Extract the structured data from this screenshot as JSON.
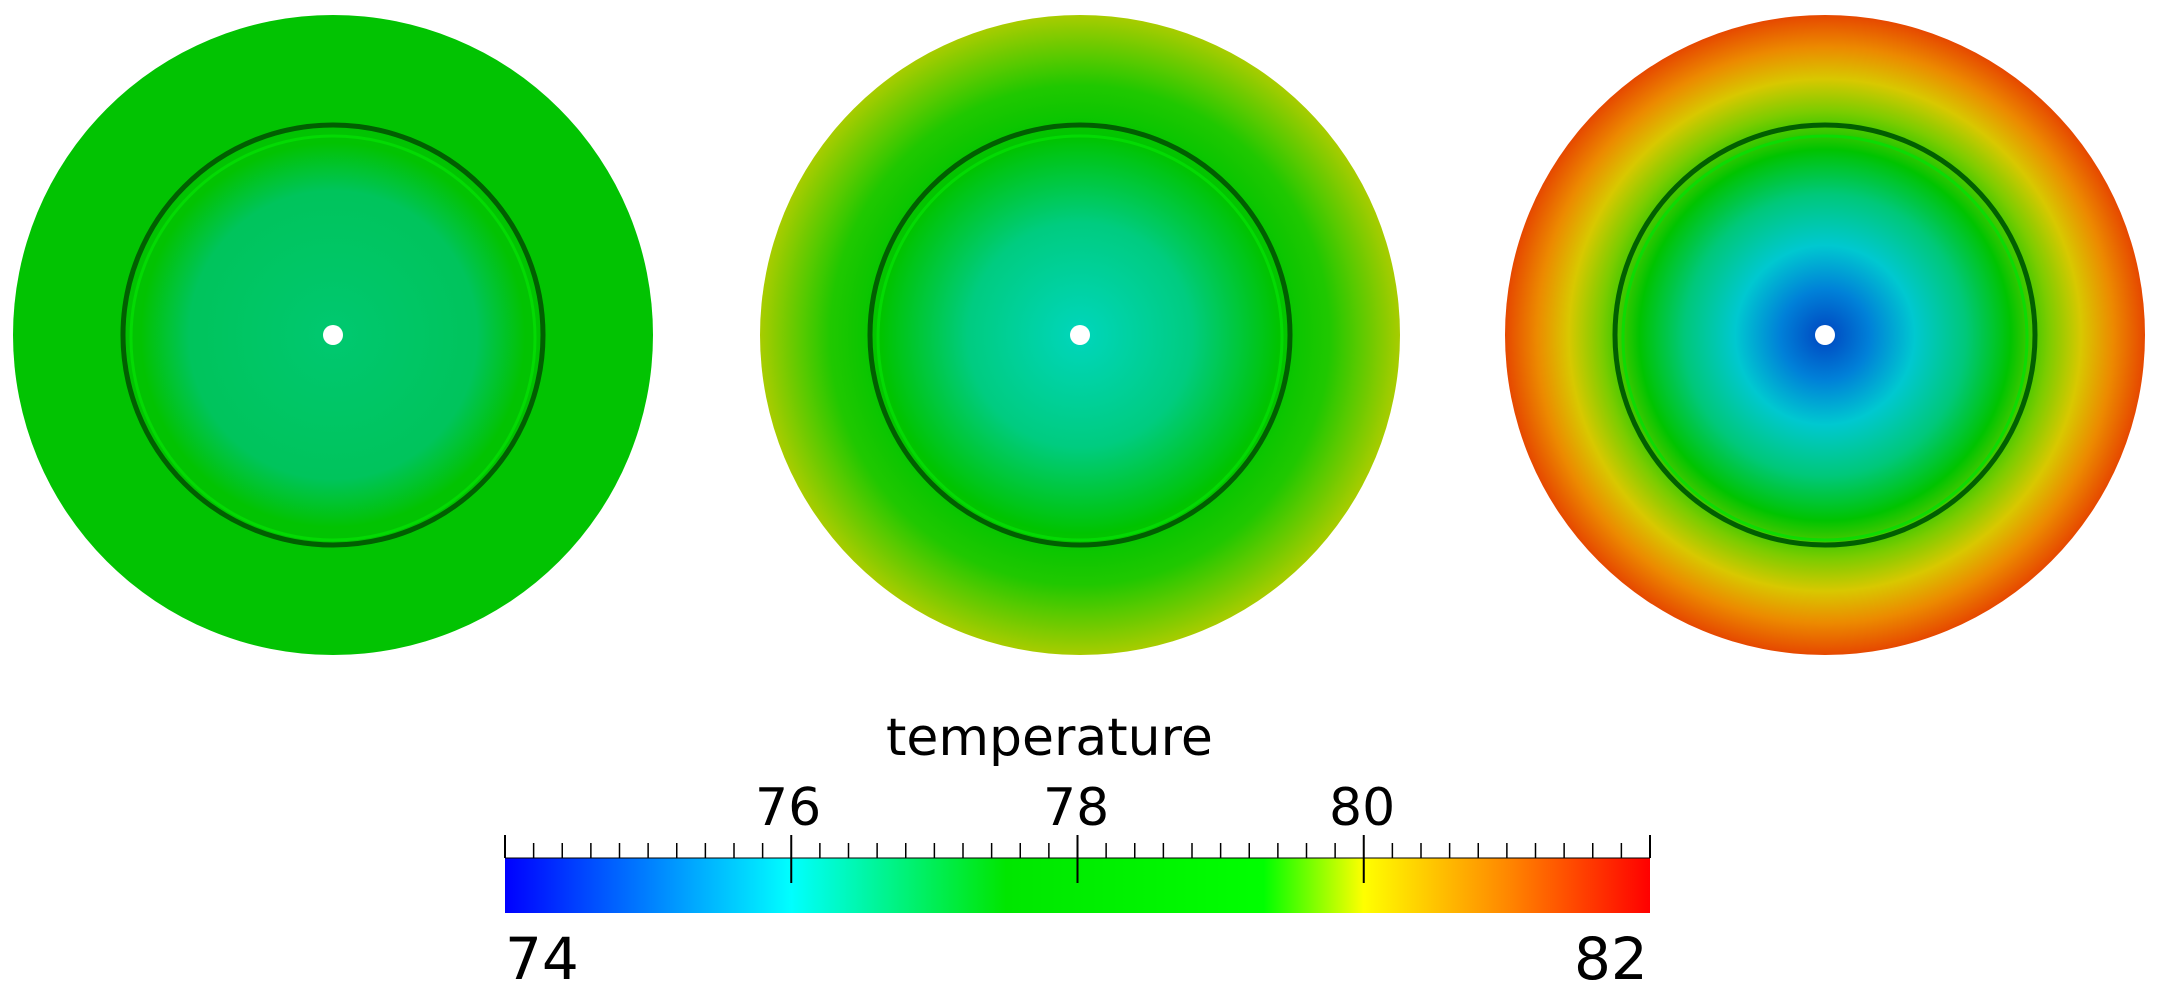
{
  "colorbar": {
    "title": "temperature",
    "min": 74,
    "max": 82,
    "labels": {
      "min": "74",
      "max": "82",
      "t76": "76",
      "t78": "78",
      "t80": "80"
    },
    "minor_tick_count": 41,
    "stops": [
      {
        "value": 74.0,
        "color": "#0000ff"
      },
      {
        "value": 76.0,
        "color": "#00ffff"
      },
      {
        "value": 77.5,
        "color": "#00e600"
      },
      {
        "value": 79.3,
        "color": "#00ff00"
      },
      {
        "value": 80.0,
        "color": "#ffff00"
      },
      {
        "value": 81.0,
        "color": "#ff8800"
      },
      {
        "value": 82.0,
        "color": "#ff0000"
      }
    ]
  },
  "panels": [
    {
      "name": "disc-left",
      "center_color": "#00c45a",
      "ring_color": "#02c302",
      "outer_color": "#02c302"
    },
    {
      "name": "disc-middle",
      "center_color": "#00d2b0",
      "ring_color": "#00c400",
      "outer_color": "#9ccc00"
    },
    {
      "name": "disc-right",
      "center_color": "#0050c8",
      "ring_color": "#00c400",
      "outer_color": "#e84a00"
    }
  ]
}
